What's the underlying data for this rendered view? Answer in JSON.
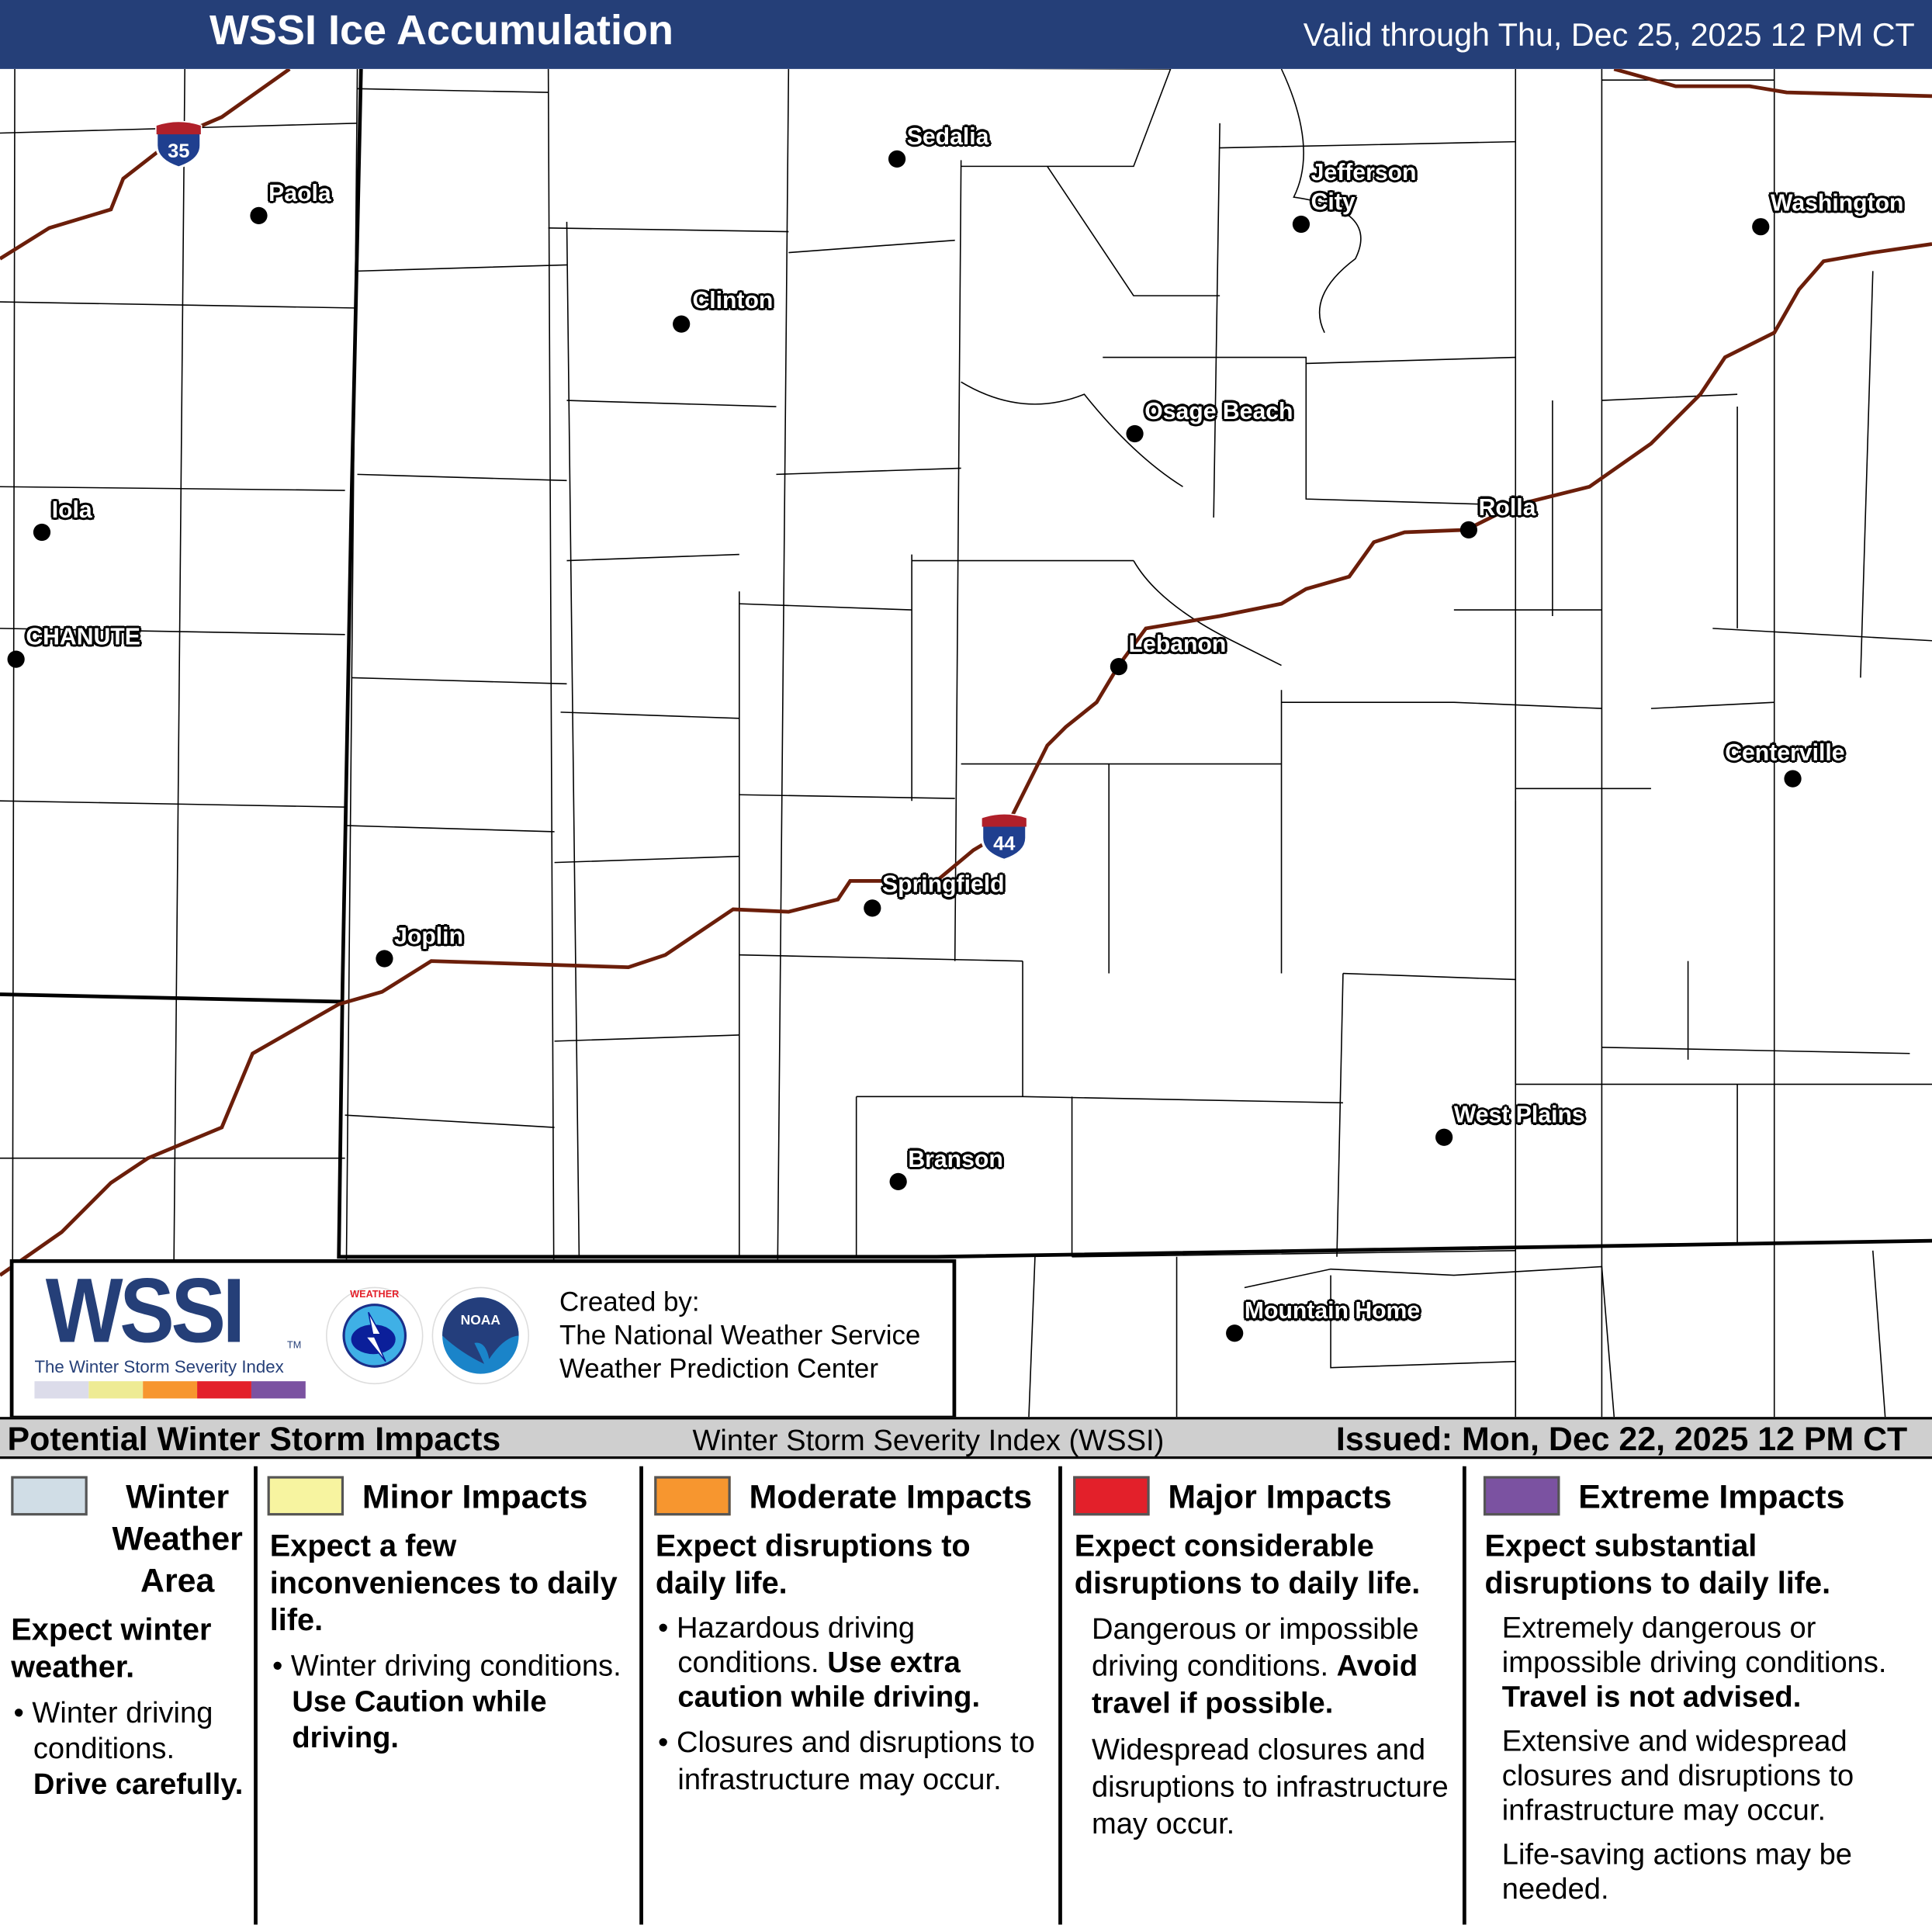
{
  "header": {
    "title": "WSSI Ice Accumulation",
    "valid": "Valid through Thu, Dec 25, 2025 12 PM CT",
    "background": "#253f78"
  },
  "map": {
    "cities": [
      "Sedalia",
      "Paola",
      "Jefferson City",
      "Washington",
      "Clinton",
      "Osage Beach",
      "Iola",
      "Rolla",
      "CHANUTE",
      "Lebanon",
      "Centerville",
      "Springfield",
      "Joplin",
      "West Plains",
      "Branson",
      "Mountain Home"
    ],
    "interstates": [
      "35",
      "44"
    ],
    "road_color": "#6b1e0a"
  },
  "logo": {
    "wssi": "WSSI",
    "tm": "TM",
    "subtitle": "The Winter Storm Severity Index",
    "credit_label": "Created by:",
    "credit_1": "The National Weather Service",
    "credit_2": "Weather Prediction Center",
    "nws_text": "NATIONAL WEATHER SERVICE",
    "noaa_text": "NOAA"
  },
  "bar": {
    "left": "Potential Winter Storm Impacts",
    "center": "Winter Storm Severity Index (WSSI)",
    "right": "Issued: Mon, Dec 22, 2025 12 PM CT"
  },
  "legend": [
    {
      "color": "#d0dde6",
      "title_1": "Winter",
      "title_2": "Weather",
      "title_3": "Area",
      "headline": "Expect winter weather.",
      "bullet": "Winter driving conditions.",
      "bullet_bold": "Drive carefully."
    },
    {
      "color": "#f7f4a0",
      "title": "Minor Impacts",
      "headline": "Expect a few inconveniences to daily life.",
      "bullet": "Winter driving conditions.",
      "bullet_bold": "Use Caution while driving."
    },
    {
      "color": "#f7962f",
      "title": "Moderate Impacts",
      "headline": "Expect disruptions to daily life.",
      "bullet_1": "Hazardous driving conditions.",
      "bullet_1_bold": "Use extra caution while driving.",
      "bullet_2": "Closures and disruptions to infrastructure may occur."
    },
    {
      "color": "#e3202a",
      "title": "Major Impacts",
      "headline": "Expect considerable disruptions to daily life.",
      "text_1": "Dangerous or impossible driving conditions.",
      "text_1_bold": "Avoid travel if possible.",
      "text_2": "Widespread closures and disruptions to infrastructure may occur."
    },
    {
      "color": "#7b52a1",
      "title": "Extreme Impacts",
      "headline": "Expect substantial disruptions to daily life.",
      "text_1": "Extremely dangerous or impossible driving conditions.",
      "text_1_bold": "Travel is not advised.",
      "text_2": "Extensive and widespread closures and disruptions to infrastructure may occur.",
      "text_3": "Life-saving actions may be needed."
    }
  ],
  "scale_colors": [
    "#dcdcea",
    "#eeeb94",
    "#f7962f",
    "#e3202a",
    "#7b52a1"
  ]
}
